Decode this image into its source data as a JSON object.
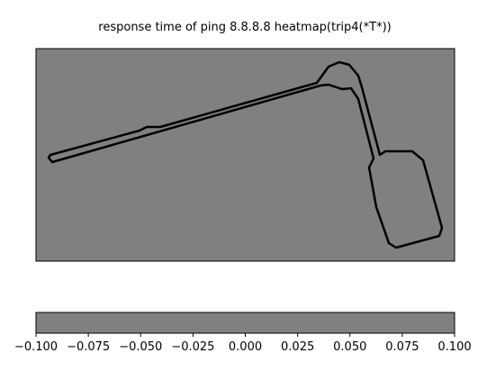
{
  "chart_data": {
    "type": "heatmap",
    "title": "response time of ping 8.8.8.8 heatmap(trip4(*T*))",
    "colormap": "gray",
    "background_color": "#808080",
    "track_color": "#000000",
    "main_axes": {
      "ticks_visible": false
    },
    "colorbar": {
      "orientation": "horizontal",
      "range": [
        -0.1,
        0.1
      ],
      "ticks": [
        -0.1,
        -0.075,
        -0.05,
        -0.025,
        0.0,
        0.025,
        0.05,
        0.075,
        0.1
      ],
      "tick_labels": [
        "−0.100",
        "−0.075",
        "−0.050",
        "−0.025",
        "0.000",
        "0.025",
        "0.050",
        "0.075",
        "0.100"
      ]
    }
  }
}
